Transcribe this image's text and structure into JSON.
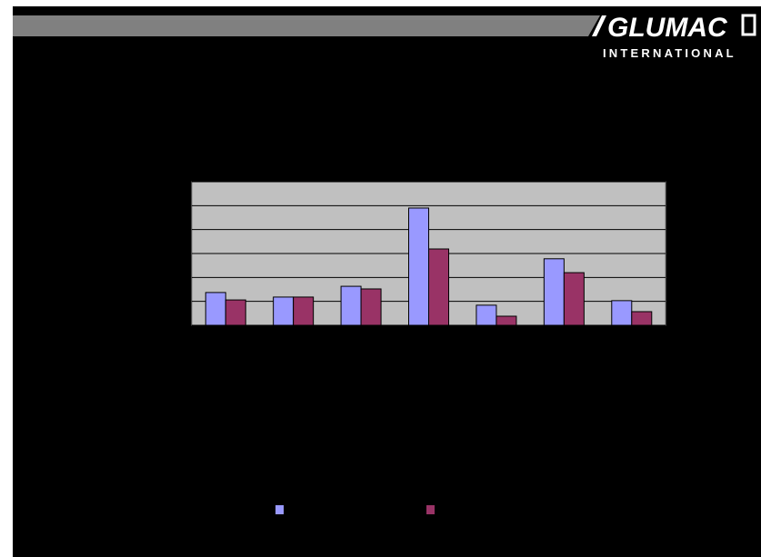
{
  "header": {
    "logo": "GLUMAC",
    "subtitle": "INTERNATIONAL"
  },
  "chart_data": {
    "type": "bar",
    "categories": [
      null,
      null,
      null,
      null,
      null,
      null,
      null
    ],
    "series": [
      {
        "color": "#9999ff",
        "values": [
          1.37,
          1.18,
          1.63,
          4.9,
          0.84,
          2.78,
          1.03
        ]
      },
      {
        "color": "#993366",
        "values": [
          1.06,
          1.18,
          1.52,
          3.19,
          0.38,
          2.2,
          0.57
        ]
      }
    ],
    "ylim": [
      0,
      6
    ],
    "yticks": [
      0,
      1,
      2,
      3,
      4,
      5,
      6
    ],
    "grid": true,
    "legend": "bottom"
  }
}
